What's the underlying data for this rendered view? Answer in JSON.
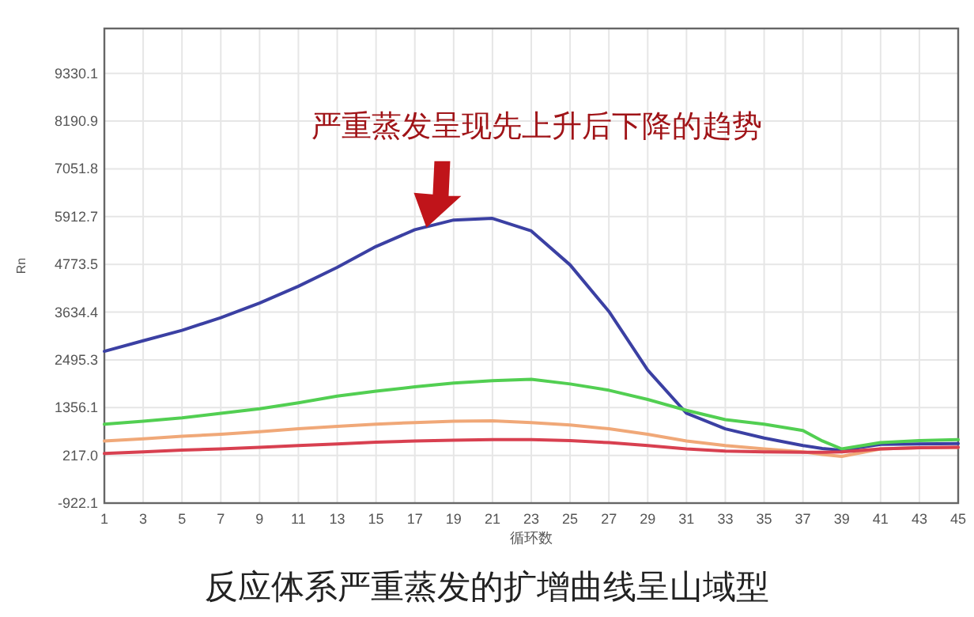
{
  "chart_data": {
    "type": "line",
    "title": "反应体系严重蒸发的扩增曲线呈山域型",
    "xlabel": "循环数",
    "ylabel": "Rn",
    "annotations": [
      {
        "text": "严重蒸发呈现先上升后下降的趋势",
        "x": 17.6,
        "y": 5650
      }
    ],
    "x": [
      1,
      3,
      5,
      7,
      9,
      11,
      13,
      15,
      17,
      19,
      21,
      23,
      25,
      27,
      29,
      31,
      33,
      35,
      37,
      38,
      39,
      41,
      43,
      45
    ],
    "series": [
      {
        "color": "#3b40a3",
        "values": [
          2700,
          2950,
          3200,
          3500,
          3850,
          4250,
          4700,
          5200,
          5600,
          5830,
          5870,
          5570,
          4760,
          3650,
          2250,
          1220,
          850,
          630,
          450,
          380,
          340,
          480,
          490,
          500
        ]
      },
      {
        "color": "#52cf52",
        "values": [
          960,
          1030,
          1110,
          1220,
          1330,
          1470,
          1630,
          1750,
          1850,
          1940,
          2000,
          2030,
          1920,
          1770,
          1550,
          1290,
          1070,
          960,
          810,
          560,
          370,
          520,
          570,
          590
        ]
      },
      {
        "color": "#f0a878",
        "values": [
          560,
          610,
          670,
          720,
          780,
          850,
          910,
          960,
          1000,
          1030,
          1040,
          1000,
          940,
          850,
          720,
          560,
          450,
          370,
          300,
          240,
          190,
          370,
          400,
          410
        ]
      },
      {
        "color": "#d84050",
        "values": [
          260,
          300,
          340,
          370,
          410,
          450,
          490,
          530,
          560,
          580,
          590,
          590,
          570,
          520,
          450,
          370,
          320,
          300,
          290,
          290,
          300,
          370,
          400,
          410
        ]
      }
    ],
    "xlim": [
      1,
      45
    ],
    "ylim": [
      -922.1,
      10400
    ],
    "xticks": [
      1,
      3,
      5,
      7,
      9,
      11,
      13,
      15,
      17,
      19,
      21,
      23,
      25,
      27,
      29,
      31,
      33,
      35,
      37,
      39,
      41,
      43,
      45
    ],
    "yticks": [
      -922.1,
      {
        "value": 217,
        "label": "217.0"
      },
      1356.1,
      2495.3,
      3634.4,
      4773.5,
      5912.7,
      7051.8,
      8190.9,
      9330.1
    ],
    "grid": true
  }
}
